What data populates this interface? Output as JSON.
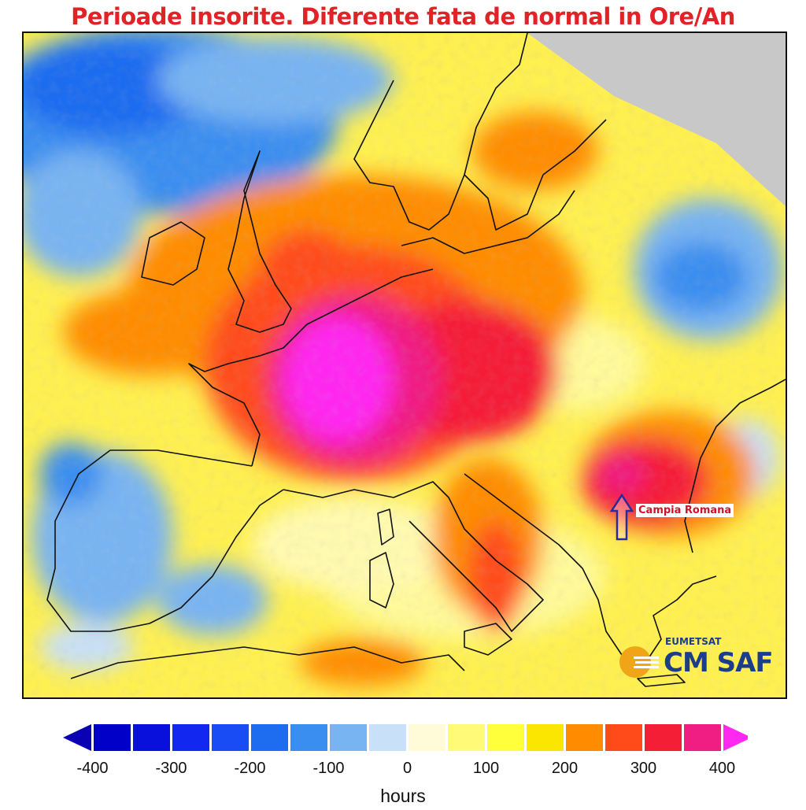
{
  "title": "Perioade insorite. Diferente fata de normal in Ore/An",
  "annotation": {
    "label": "Campia Romana"
  },
  "logo": {
    "top_text": "EUMETSAT",
    "main_text": "CM SAF",
    "brand_color": "#1c3e8a",
    "sun_color": "#f0a417"
  },
  "legend": {
    "unit": "hours",
    "ticks": [
      "-400",
      "-300",
      "-200",
      "-100",
      "0",
      "100",
      "200",
      "300",
      "400"
    ],
    "colors": [
      "#0000c8",
      "#0a10dc",
      "#1228f0",
      "#1a4cf5",
      "#1e6cf0",
      "#3a8ef0",
      "#78b4f2",
      "#c8e0f8",
      "#fffad8",
      "#fffa78",
      "#ffff3c",
      "#fae600",
      "#ff8c00",
      "#ff4b1a",
      "#f51e37",
      "#f01e82"
    ],
    "under_color": "#0a00b4",
    "over_color": "#ff28f0"
  }
}
